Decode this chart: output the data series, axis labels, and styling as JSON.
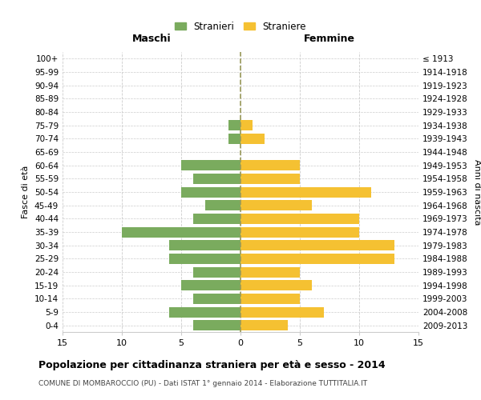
{
  "age_groups": [
    "0-4",
    "5-9",
    "10-14",
    "15-19",
    "20-24",
    "25-29",
    "30-34",
    "35-39",
    "40-44",
    "45-49",
    "50-54",
    "55-59",
    "60-64",
    "65-69",
    "70-74",
    "75-79",
    "80-84",
    "85-89",
    "90-94",
    "95-99",
    "100+"
  ],
  "birth_years": [
    "2009-2013",
    "2004-2008",
    "1999-2003",
    "1994-1998",
    "1989-1993",
    "1984-1988",
    "1979-1983",
    "1974-1978",
    "1969-1973",
    "1964-1968",
    "1959-1963",
    "1954-1958",
    "1949-1953",
    "1944-1948",
    "1939-1943",
    "1934-1938",
    "1929-1933",
    "1924-1928",
    "1919-1923",
    "1914-1918",
    "≤ 1913"
  ],
  "maschi": [
    4,
    6,
    4,
    5,
    4,
    6,
    6,
    10,
    4,
    3,
    5,
    4,
    5,
    0,
    1,
    1,
    0,
    0,
    0,
    0,
    0
  ],
  "femmine": [
    4,
    7,
    5,
    6,
    5,
    13,
    13,
    10,
    10,
    6,
    11,
    5,
    5,
    0,
    2,
    1,
    0,
    0,
    0,
    0,
    0
  ],
  "maschi_color": "#7aab5e",
  "femmine_color": "#f5c132",
  "grid_color": "#cccccc",
  "background_color": "#ffffff",
  "title": "Popolazione per cittadinanza straniera per età e sesso - 2014",
  "subtitle": "COMUNE DI MOMBAROCCIO (PU) - Dati ISTAT 1° gennaio 2014 - Elaborazione TUTTITALIA.IT",
  "xlabel_left": "Maschi",
  "xlabel_right": "Femmine",
  "ylabel_left": "Fasce di età",
  "ylabel_right": "Anni di nascita",
  "legend_maschi": "Stranieri",
  "legend_femmine": "Straniere",
  "xlim": 15,
  "center_line_color": "#9a9a5a"
}
